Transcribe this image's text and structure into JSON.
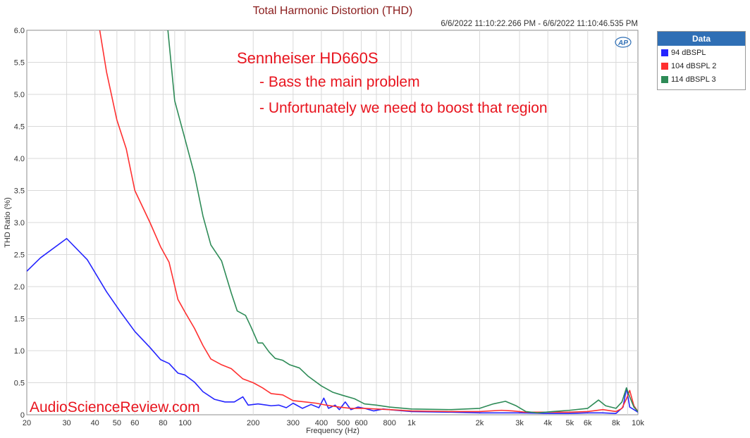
{
  "chart_data": {
    "type": "line",
    "title": "Total Harmonic Distortion (THD)",
    "timestamp": "6/6/2022 11:10:22.266 PM - 6/6/2022 11:10:46.535 PM",
    "xlabel": "Frequency (Hz)",
    "ylabel": "THD Ratio (%)",
    "xscale": "log",
    "xlim": [
      20,
      10000
    ],
    "ylim": [
      0,
      6
    ],
    "grid": true,
    "legend_position": "right",
    "legend_title": "Data",
    "logo": "AP",
    "xticks": [
      {
        "v": 20,
        "l": "20"
      },
      {
        "v": 30,
        "l": "30"
      },
      {
        "v": 40,
        "l": "40"
      },
      {
        "v": 50,
        "l": "50"
      },
      {
        "v": 60,
        "l": "60"
      },
      {
        "v": 80,
        "l": "80"
      },
      {
        "v": 100,
        "l": "100"
      },
      {
        "v": 200,
        "l": "200"
      },
      {
        "v": 300,
        "l": "300"
      },
      {
        "v": 400,
        "l": "400"
      },
      {
        "v": 500,
        "l": "500"
      },
      {
        "v": 600,
        "l": "600"
      },
      {
        "v": 800,
        "l": "800"
      },
      {
        "v": 1000,
        "l": "1k"
      },
      {
        "v": 2000,
        "l": "2k"
      },
      {
        "v": 3000,
        "l": "3k"
      },
      {
        "v": 4000,
        "l": "4k"
      },
      {
        "v": 5000,
        "l": "5k"
      },
      {
        "v": 6000,
        "l": "6k"
      },
      {
        "v": 8000,
        "l": "8k"
      },
      {
        "v": 10000,
        "l": "10k"
      }
    ],
    "yticks": [
      {
        "v": 0,
        "l": "0"
      },
      {
        "v": 0.5,
        "l": "0.5"
      },
      {
        "v": 1,
        "l": "1.0"
      },
      {
        "v": 1.5,
        "l": "1.5"
      },
      {
        "v": 2,
        "l": "2.0"
      },
      {
        "v": 2.5,
        "l": "2.5"
      },
      {
        "v": 3,
        "l": "3.0"
      },
      {
        "v": 3.5,
        "l": "3.5"
      },
      {
        "v": 4,
        "l": "4.0"
      },
      {
        "v": 4.5,
        "l": "4.5"
      },
      {
        "v": 5,
        "l": "5.0"
      },
      {
        "v": 5.5,
        "l": "5.5"
      },
      {
        "v": 6,
        "l": "6.0"
      }
    ],
    "annotations": {
      "heading": "Sennheiser HD660S",
      "line1": "- Bass the main problem",
      "line2": "- Unfortunately we need to boost that region",
      "color": "#e8141e",
      "watermark": "AudioScienceReview.com"
    },
    "series": [
      {
        "name": "94 dBSPL",
        "label": "94 dBSPL",
        "color": "#2424ff",
        "points": [
          [
            20,
            2.24
          ],
          [
            23,
            2.45
          ],
          [
            30,
            2.75
          ],
          [
            37,
            2.42
          ],
          [
            45,
            1.92
          ],
          [
            52,
            1.6
          ],
          [
            60,
            1.3
          ],
          [
            70,
            1.05
          ],
          [
            78,
            0.86
          ],
          [
            85,
            0.8
          ],
          [
            93,
            0.65
          ],
          [
            100,
            0.62
          ],
          [
            110,
            0.51
          ],
          [
            120,
            0.36
          ],
          [
            135,
            0.24
          ],
          [
            150,
            0.2
          ],
          [
            165,
            0.2
          ],
          [
            180,
            0.28
          ],
          [
            190,
            0.15
          ],
          [
            210,
            0.17
          ],
          [
            240,
            0.14
          ],
          [
            260,
            0.15
          ],
          [
            280,
            0.11
          ],
          [
            300,
            0.18
          ],
          [
            330,
            0.1
          ],
          [
            360,
            0.16
          ],
          [
            390,
            0.11
          ],
          [
            410,
            0.26
          ],
          [
            430,
            0.1
          ],
          [
            460,
            0.15
          ],
          [
            480,
            0.08
          ],
          [
            510,
            0.2
          ],
          [
            540,
            0.08
          ],
          [
            580,
            0.12
          ],
          [
            620,
            0.1
          ],
          [
            680,
            0.06
          ],
          [
            750,
            0.09
          ],
          [
            850,
            0.07
          ],
          [
            1000,
            0.05
          ],
          [
            1500,
            0.04
          ],
          [
            2000,
            0.03
          ],
          [
            3000,
            0.03
          ],
          [
            4000,
            0.02
          ],
          [
            5000,
            0.02
          ],
          [
            6000,
            0.03
          ],
          [
            7000,
            0.03
          ],
          [
            8000,
            0.02
          ],
          [
            8600,
            0.12
          ],
          [
            8900,
            0.42
          ],
          [
            9200,
            0.12
          ],
          [
            9600,
            0.08
          ],
          [
            10000,
            0.04
          ]
        ]
      },
      {
        "name": "104 dBSPL",
        "label": "104 dBSPL 2",
        "color": "#ff3030",
        "points": [
          [
            42,
            6.0
          ],
          [
            45,
            5.35
          ],
          [
            50,
            4.6
          ],
          [
            55,
            4.15
          ],
          [
            60,
            3.5
          ],
          [
            70,
            3.0
          ],
          [
            78,
            2.62
          ],
          [
            85,
            2.38
          ],
          [
            93,
            1.8
          ],
          [
            100,
            1.6
          ],
          [
            110,
            1.35
          ],
          [
            120,
            1.08
          ],
          [
            130,
            0.87
          ],
          [
            145,
            0.78
          ],
          [
            160,
            0.72
          ],
          [
            180,
            0.56
          ],
          [
            200,
            0.5
          ],
          [
            220,
            0.42
          ],
          [
            240,
            0.33
          ],
          [
            270,
            0.31
          ],
          [
            300,
            0.22
          ],
          [
            340,
            0.2
          ],
          [
            380,
            0.18
          ],
          [
            420,
            0.15
          ],
          [
            480,
            0.12
          ],
          [
            540,
            0.1
          ],
          [
            620,
            0.1
          ],
          [
            700,
            0.09
          ],
          [
            800,
            0.08
          ],
          [
            1000,
            0.06
          ],
          [
            1500,
            0.05
          ],
          [
            2000,
            0.05
          ],
          [
            2500,
            0.07
          ],
          [
            2800,
            0.06
          ],
          [
            3200,
            0.04
          ],
          [
            4000,
            0.04
          ],
          [
            5000,
            0.04
          ],
          [
            6000,
            0.05
          ],
          [
            7000,
            0.08
          ],
          [
            8000,
            0.05
          ],
          [
            8500,
            0.1
          ],
          [
            8900,
            0.25
          ],
          [
            9200,
            0.38
          ],
          [
            9600,
            0.14
          ],
          [
            10000,
            0.05
          ]
        ]
      },
      {
        "name": "114 dBSPL",
        "label": "114 dBSPL 3",
        "color": "#2e8b57",
        "points": [
          [
            84,
            6.0
          ],
          [
            90,
            4.9
          ],
          [
            100,
            4.3
          ],
          [
            110,
            3.75
          ],
          [
            120,
            3.1
          ],
          [
            130,
            2.65
          ],
          [
            145,
            2.4
          ],
          [
            160,
            1.9
          ],
          [
            170,
            1.62
          ],
          [
            185,
            1.55
          ],
          [
            195,
            1.38
          ],
          [
            210,
            1.12
          ],
          [
            220,
            1.12
          ],
          [
            235,
            0.98
          ],
          [
            250,
            0.88
          ],
          [
            270,
            0.85
          ],
          [
            290,
            0.78
          ],
          [
            320,
            0.73
          ],
          [
            350,
            0.6
          ],
          [
            400,
            0.45
          ],
          [
            450,
            0.35
          ],
          [
            500,
            0.3
          ],
          [
            560,
            0.25
          ],
          [
            620,
            0.17
          ],
          [
            700,
            0.15
          ],
          [
            800,
            0.12
          ],
          [
            1000,
            0.09
          ],
          [
            1500,
            0.08
          ],
          [
            2000,
            0.1
          ],
          [
            2300,
            0.17
          ],
          [
            2600,
            0.21
          ],
          [
            2900,
            0.14
          ],
          [
            3200,
            0.05
          ],
          [
            3600,
            0.03
          ],
          [
            4200,
            0.05
          ],
          [
            5000,
            0.07
          ],
          [
            6000,
            0.1
          ],
          [
            6700,
            0.23
          ],
          [
            7200,
            0.14
          ],
          [
            8000,
            0.1
          ],
          [
            8500,
            0.2
          ],
          [
            8900,
            0.42
          ],
          [
            9200,
            0.28
          ],
          [
            9600,
            0.12
          ],
          [
            10000,
            0.05
          ]
        ]
      }
    ]
  }
}
